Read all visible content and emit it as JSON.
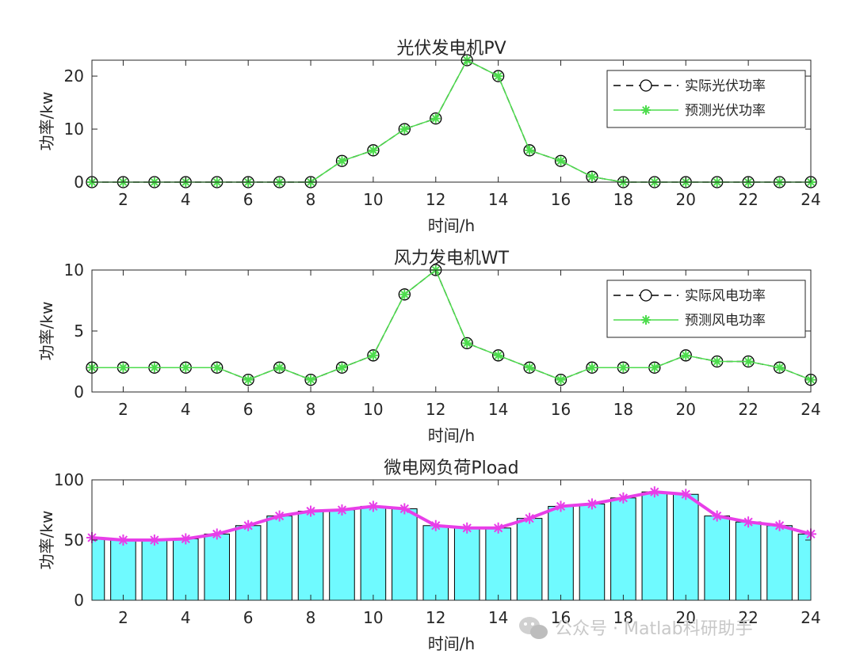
{
  "chart_data": [
    {
      "type": "line",
      "title": "光伏发电机PV",
      "xlabel": "时间/h",
      "ylabel": "功率/kw",
      "xlim": [
        1,
        24
      ],
      "ylim": [
        0,
        23
      ],
      "xticks": [
        "2",
        "4",
        "6",
        "8",
        "10",
        "12",
        "14",
        "16",
        "18",
        "20",
        "22",
        "24"
      ],
      "yticks": [
        "0",
        "10",
        "20"
      ],
      "x": [
        1,
        2,
        3,
        4,
        5,
        6,
        7,
        8,
        9,
        10,
        11,
        12,
        13,
        14,
        15,
        16,
        17,
        18,
        19,
        20,
        21,
        22,
        23,
        24
      ],
      "series": [
        {
          "name": "实际光伏功率",
          "style": "black-dashed-circle",
          "color": "#000000",
          "values": [
            0,
            0,
            0,
            0,
            0,
            0,
            0,
            0,
            4,
            6,
            10,
            12,
            23,
            20,
            6,
            4,
            1,
            0,
            0,
            0,
            0,
            0,
            0,
            0
          ]
        },
        {
          "name": "预测光伏功率",
          "style": "green-solid-star",
          "color": "#4ddc4d",
          "values": [
            0,
            0,
            0,
            0,
            0,
            0,
            0,
            0,
            4,
            6,
            10,
            12,
            23,
            20,
            6,
            4,
            1,
            0,
            0,
            0,
            0,
            0,
            0,
            0
          ]
        }
      ],
      "legend": "top-right"
    },
    {
      "type": "line",
      "title": "风力发电机WT",
      "xlabel": "时间/h",
      "ylabel": "功率/kw",
      "xlim": [
        1,
        24
      ],
      "ylim": [
        0,
        10
      ],
      "xticks": [
        "2",
        "4",
        "6",
        "8",
        "10",
        "12",
        "14",
        "16",
        "18",
        "20",
        "22",
        "24"
      ],
      "yticks": [
        "0",
        "5",
        "10"
      ],
      "x": [
        1,
        2,
        3,
        4,
        5,
        6,
        7,
        8,
        9,
        10,
        11,
        12,
        13,
        14,
        15,
        16,
        17,
        18,
        19,
        20,
        21,
        22,
        23,
        24
      ],
      "series": [
        {
          "name": "实际风电功率",
          "style": "black-dashed-circle",
          "color": "#000000",
          "values": [
            2,
            2,
            2,
            2,
            2,
            1,
            2,
            1,
            2,
            3,
            8,
            10,
            4,
            3,
            2,
            1,
            2,
            2,
            2,
            3,
            2.5,
            2.5,
            2,
            1
          ]
        },
        {
          "name": "预测风电功率",
          "style": "green-solid-star",
          "color": "#4ddc4d",
          "values": [
            2,
            2,
            2,
            2,
            2,
            1,
            2,
            1,
            2,
            3,
            8,
            10,
            4,
            3,
            2,
            1,
            2,
            2,
            2,
            3,
            2.5,
            2.5,
            2,
            1
          ]
        }
      ],
      "legend": "top-right"
    },
    {
      "type": "bar",
      "title": "微电网负荷Pload",
      "xlabel": "时间/h",
      "ylabel": "功率/kw",
      "xlim": [
        1,
        24
      ],
      "ylim": [
        0,
        100
      ],
      "xticks": [
        "2",
        "4",
        "6",
        "8",
        "10",
        "12",
        "14",
        "16",
        "18",
        "20",
        "22",
        "24"
      ],
      "yticks": [
        "0",
        "50",
        "100"
      ],
      "x": [
        1,
        2,
        3,
        4,
        5,
        6,
        7,
        8,
        9,
        10,
        11,
        12,
        13,
        14,
        15,
        16,
        17,
        18,
        19,
        20,
        21,
        22,
        23,
        24
      ],
      "bar_color": "#6ffaff",
      "line_color": "#e83ee8",
      "values": [
        52,
        50,
        50,
        51,
        55,
        62,
        70,
        74,
        75,
        78,
        76,
        62,
        60,
        60,
        68,
        78,
        80,
        85,
        90,
        88,
        70,
        65,
        62,
        55
      ]
    }
  ],
  "watermark": "公众号 · Matlab科研助手"
}
